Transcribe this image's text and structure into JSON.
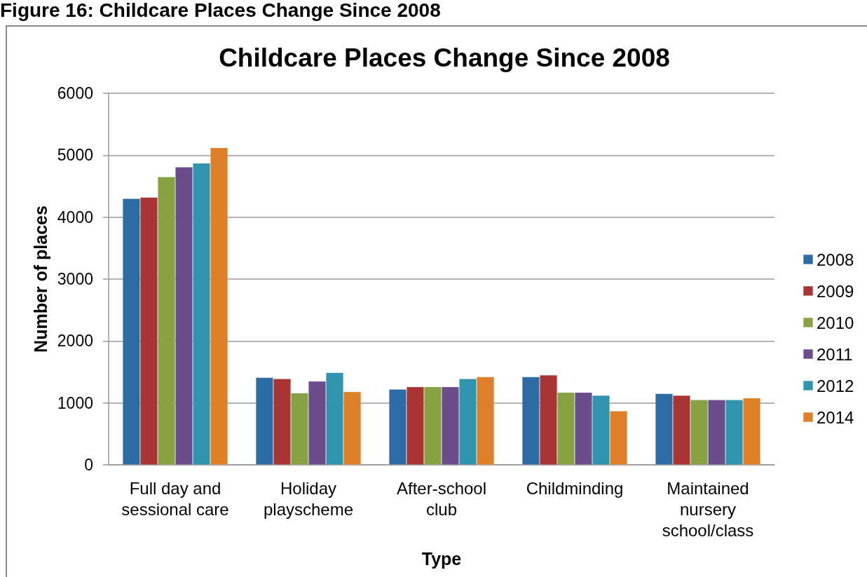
{
  "chart_data": {
    "type": "bar",
    "title": "Childcare Places Change Since 2008",
    "xlabel": "Type",
    "ylabel": "Number of places",
    "annotations": [
      "Figure 16: Childcare Places Change Since 2008"
    ],
    "categories": [
      "Full day and sessional care",
      "Holiday playscheme",
      "After-school club",
      "Childminding",
      "Maintained nursery school/class"
    ],
    "series": [
      {
        "name": "2008",
        "color": "#2d6ba5",
        "values": [
          4300,
          1410,
          1220,
          1420,
          1150
        ]
      },
      {
        "name": "2009",
        "color": "#a83533",
        "values": [
          4320,
          1390,
          1260,
          1450,
          1120
        ]
      },
      {
        "name": "2010",
        "color": "#87a143",
        "values": [
          4650,
          1160,
          1260,
          1170,
          1050
        ]
      },
      {
        "name": "2011",
        "color": "#6b4d8b",
        "values": [
          4810,
          1350,
          1260,
          1170,
          1050
        ]
      },
      {
        "name": "2012",
        "color": "#3194ae",
        "values": [
          4870,
          1490,
          1390,
          1120,
          1050
        ]
      },
      {
        "name": "2014",
        "color": "#dd8028",
        "values": [
          5120,
          1180,
          1420,
          870,
          1080
        ]
      }
    ],
    "ylim": [
      0,
      6000
    ],
    "yticks": [
      0,
      1000,
      2000,
      3000,
      4000,
      5000,
      6000
    ],
    "grid": "y",
    "legend": "right"
  }
}
